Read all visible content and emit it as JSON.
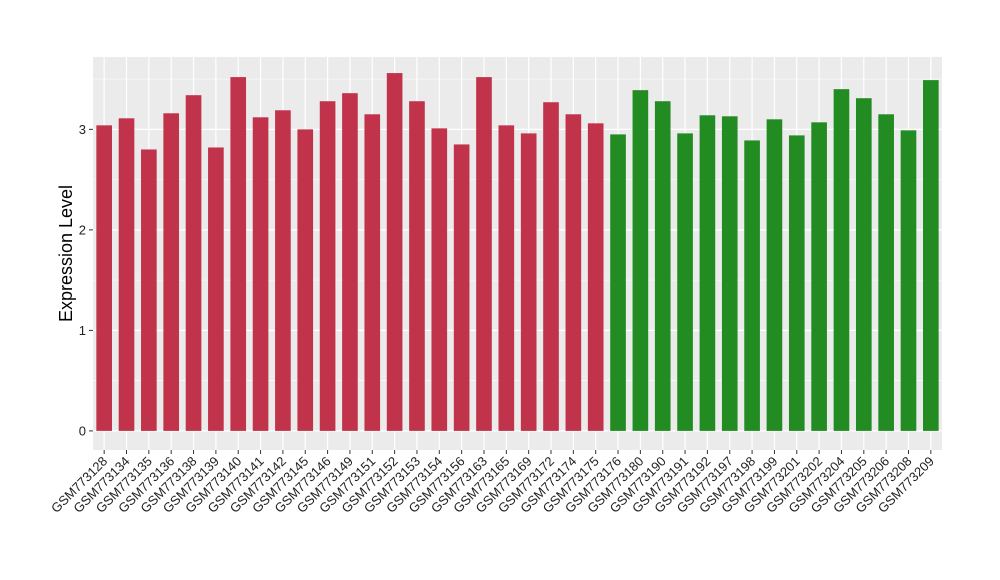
{
  "chart_data": {
    "type": "bar",
    "title": "",
    "xlabel": "",
    "ylabel": "Expression Level",
    "ylim": [
      -0.19,
      3.72
    ],
    "yticks": [
      0,
      1,
      2,
      3
    ],
    "grid": true,
    "legend": "none",
    "categories": [
      "GSM773128",
      "GSM773134",
      "GSM773135",
      "GSM773136",
      "GSM773138",
      "GSM773139",
      "GSM773140",
      "GSM773141",
      "GSM773142",
      "GSM773145",
      "GSM773146",
      "GSM773149",
      "GSM773151",
      "GSM773152",
      "GSM773153",
      "GSM773154",
      "GSM773156",
      "GSM773163",
      "GSM773165",
      "GSM773169",
      "GSM773172",
      "GSM773174",
      "GSM773175",
      "GSM773176",
      "GSM773180",
      "GSM773190",
      "GSM773191",
      "GSM773192",
      "GSM773197",
      "GSM773198",
      "GSM773199",
      "GSM773201",
      "GSM773202",
      "GSM773204",
      "GSM773205",
      "GSM773206",
      "GSM773208",
      "GSM773209"
    ],
    "values": [
      3.04,
      3.11,
      2.8,
      3.16,
      3.34,
      2.82,
      3.52,
      3.12,
      3.19,
      3.0,
      3.28,
      3.36,
      3.15,
      3.56,
      3.28,
      3.01,
      2.85,
      3.52,
      3.04,
      2.96,
      3.27,
      3.15,
      3.06,
      2.95,
      3.39,
      3.28,
      2.96,
      3.14,
      3.13,
      2.89,
      3.1,
      2.94,
      3.07,
      3.4,
      3.31,
      3.15,
      2.99,
      3.49
    ],
    "group_sizes": [
      23,
      15
    ],
    "colors": {
      "group_1": "#c0334a",
      "group_2": "#228b22",
      "panel_background": "#ebebeb",
      "gridline": "#ffffff"
    }
  }
}
